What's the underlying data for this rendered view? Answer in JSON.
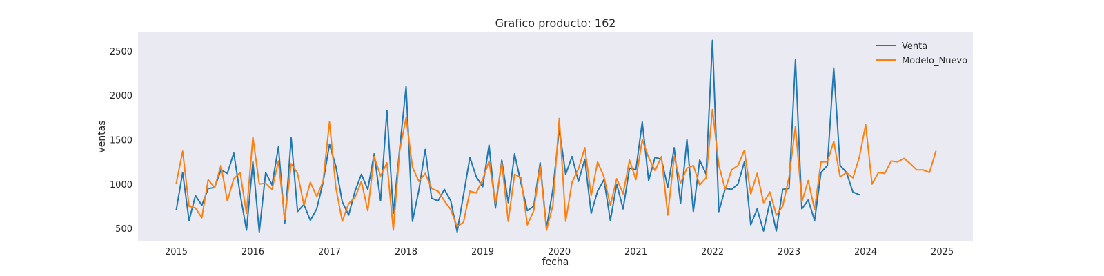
{
  "chart_data": {
    "type": "line",
    "title": "Grafico producto: 162",
    "xlabel": "fecha",
    "ylabel": "ventas",
    "xlim": [
      2014.5,
      2025.4
    ],
    "ylim": [
      360,
      2710
    ],
    "xticks": [
      2015,
      2016,
      2017,
      2018,
      2019,
      2020,
      2021,
      2022,
      2023,
      2024,
      2025
    ],
    "xtick_labels": [
      "2015",
      "2016",
      "2017",
      "2018",
      "2019",
      "2020",
      "2021",
      "2022",
      "2023",
      "2024",
      "2025"
    ],
    "yticks": [
      500,
      1000,
      1500,
      2000,
      2500
    ],
    "ytick_labels": [
      "500",
      "1000",
      "1500",
      "2000",
      "2500"
    ],
    "grid": true,
    "legend_position": "top-right",
    "background": "#eaeaf2",
    "series": [
      {
        "name": "Venta",
        "color": "#1f77b4",
        "x_start": 2015.0,
        "x_step_months": 1,
        "values": [
          710,
          1130,
          590,
          870,
          760,
          950,
          960,
          1160,
          1120,
          1350,
          890,
          480,
          1250,
          460,
          1130,
          990,
          1420,
          560,
          1520,
          690,
          770,
          590,
          720,
          1020,
          1450,
          1200,
          800,
          650,
          920,
          1110,
          940,
          1340,
          810,
          1830,
          670,
          1400,
          2100,
          580,
          930,
          1390,
          840,
          810,
          940,
          810,
          460,
          880,
          1300,
          1080,
          970,
          1440,
          730,
          1270,
          790,
          1340,
          1010,
          700,
          750,
          1240,
          500,
          940,
          1620,
          1110,
          1310,
          1030,
          1280,
          670,
          920,
          1050,
          590,
          1000,
          720,
          1180,
          1160,
          1700,
          1040,
          1300,
          1280,
          960,
          1410,
          780,
          1500,
          690,
          1270,
          1110,
          2620,
          690,
          950,
          940,
          1000,
          1250,
          540,
          720,
          470,
          800,
          470,
          940,
          950,
          2400,
          720,
          820,
          590,
          1130,
          1210,
          2310,
          1210,
          1130,
          910,
          880
        ]
      },
      {
        "name": "Modelo_Nuevo",
        "color": "#ff7f0e",
        "x_start": 2015.0,
        "x_step_months": 1,
        "values": [
          1010,
          1370,
          750,
          730,
          620,
          1050,
          960,
          1210,
          810,
          1060,
          1130,
          670,
          1530,
          1000,
          1010,
          940,
          1260,
          600,
          1230,
          1120,
          760,
          1020,
          860,
          1030,
          1700,
          960,
          580,
          780,
          850,
          1030,
          700,
          1310,
          1090,
          1240,
          480,
          1380,
          1750,
          1190,
          1030,
          1120,
          950,
          920,
          810,
          710,
          520,
          570,
          920,
          900,
          1050,
          1260,
          780,
          1240,
          580,
          1110,
          1070,
          540,
          700,
          1200,
          480,
          760,
          1740,
          580,
          1020,
          1170,
          1410,
          870,
          1250,
          1080,
          760,
          1060,
          890,
          1270,
          1050,
          1500,
          1300,
          1150,
          1310,
          650,
          1310,
          1010,
          1180,
          1210,
          990,
          1070,
          1840,
          1210,
          940,
          1160,
          1210,
          1380,
          890,
          1120,
          790,
          910,
          650,
          750,
          1080,
          1650,
          800,
          1040,
          710,
          1250,
          1250,
          1480,
          1080,
          1130,
          1070,
          1300,
          1670,
          1000,
          1130,
          1120,
          1260,
          1250,
          1290,
          1230,
          1160,
          1160,
          1130,
          1370
        ]
      }
    ]
  }
}
